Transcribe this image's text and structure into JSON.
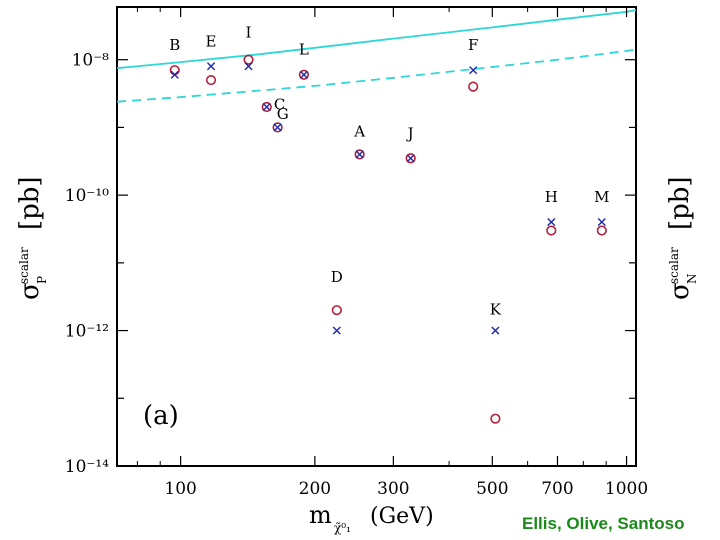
{
  "colors": {
    "neutralino_marker": "#b0203a",
    "proton_marker": "#1a2aa8",
    "curve": "#2fd6d6",
    "credit": "#1a8a1a"
  },
  "credit": "Ellis, Olive, Santoso",
  "chart_data": {
    "type": "scatter",
    "panel_label": "(a)",
    "xlabel": "m (GeV)",
    "xlabel_sub": "χ̃⁰₁",
    "ylabel_left": "σ [pb]",
    "ylabel_left_super": "scalar",
    "ylabel_left_sub": "P",
    "ylabel_right": "σ [pb]",
    "ylabel_right_super": "scalar",
    "ylabel_right_sub": "N",
    "xscale": "log",
    "yscale": "log",
    "xlim": [
      72,
      1050
    ],
    "ylim": [
      1e-14,
      6e-08
    ],
    "x_ticks": [
      100,
      200,
      300,
      500,
      700,
      1000
    ],
    "x_tick_labels": [
      "100",
      "200",
      "300",
      "500",
      "700",
      "1000"
    ],
    "y_ticks": [
      1e-08,
      1e-10,
      1e-12,
      1e-14
    ],
    "y_tick_labels": [
      "10⁻⁸",
      "10⁻¹⁰",
      "10⁻¹²",
      "10⁻¹⁴"
    ],
    "points": [
      {
        "label": "B",
        "x": 97,
        "proton": 6e-09,
        "neutron": 7e-09
      },
      {
        "label": "E",
        "x": 117,
        "proton": 8e-09,
        "neutron": 5e-09
      },
      {
        "label": "I",
        "x": 142,
        "proton": 8e-09,
        "neutron": 1e-08
      },
      {
        "label": "G",
        "x": 156,
        "proton": 2e-09,
        "neutron": 2e-09
      },
      {
        "label": "C",
        "x": 165,
        "proton": 1e-09,
        "neutron": 1e-09
      },
      {
        "label": "L",
        "x": 189,
        "proton": 6e-09,
        "neutron": 6e-09
      },
      {
        "label": "D",
        "x": 224,
        "proton": 1e-12,
        "neutron": 2e-12
      },
      {
        "label": "A",
        "x": 252,
        "proton": 4e-10,
        "neutron": 4e-10
      },
      {
        "label": "J",
        "x": 328,
        "proton": 3.5e-10,
        "neutron": 3.5e-10
      },
      {
        "label": "F",
        "x": 453,
        "proton": 7e-09,
        "neutron": 4e-09
      },
      {
        "label": "K",
        "x": 508,
        "proton": 1e-12,
        "neutron": 5e-14
      },
      {
        "label": "H",
        "x": 678,
        "proton": 4e-11,
        "neutron": 3e-11
      },
      {
        "label": "M",
        "x": 880,
        "proton": 4e-11,
        "neutron": 3e-11
      }
    ],
    "curves": [
      {
        "style": "solid",
        "x": [
          72,
          100,
          150,
          200,
          300,
          500,
          700,
          1000,
          1050
        ],
        "y": [
          7.5e-09,
          9.2e-09,
          1.2e-08,
          1.5e-08,
          2.05e-08,
          3e-08,
          3.9e-08,
          5.1e-08,
          5.4e-08
        ]
      },
      {
        "style": "dashed",
        "x": [
          72,
          100,
          150,
          200,
          300,
          500,
          700,
          1000,
          1050
        ],
        "y": [
          2.4e-09,
          2.8e-09,
          3.5e-09,
          4.1e-09,
          5.4e-09,
          7.8e-09,
          1e-08,
          1.35e-08,
          1.42e-08
        ]
      }
    ]
  }
}
